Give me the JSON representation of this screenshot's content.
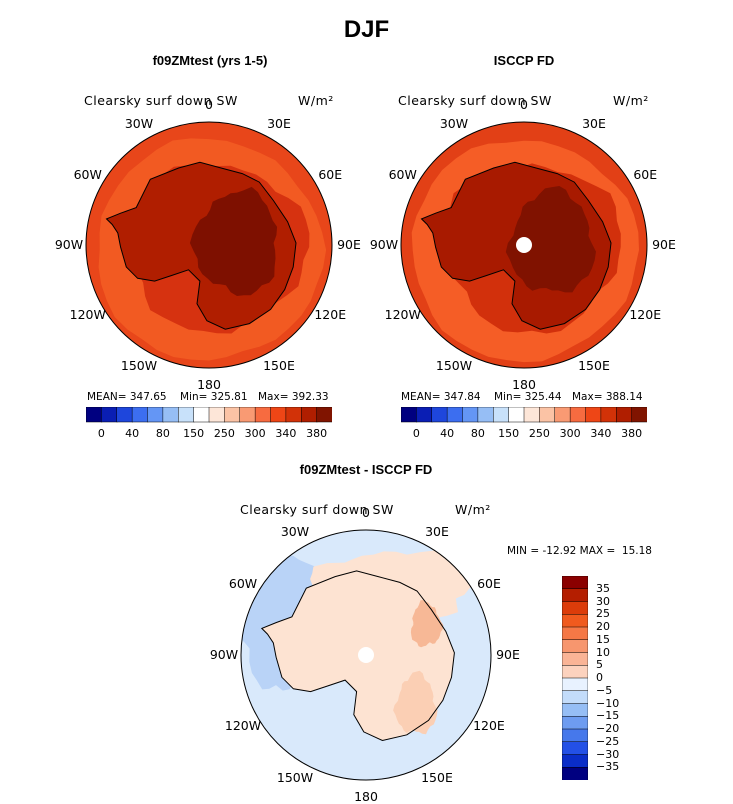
{
  "page_title": "DJF",
  "chart_data": [
    {
      "type": "polar-contour-map",
      "title": "f09ZMtest (yrs 1-5)",
      "variable": "Clearsky surf down SW",
      "units": "W/m²",
      "lon_labels": [
        "0",
        "30E",
        "60E",
        "90E",
        "120E",
        "150E",
        "180",
        "150W",
        "120W",
        "90W",
        "60W",
        "30W"
      ],
      "stats": {
        "mean_label": "MEAN=",
        "mean": "347.65",
        "min_label": "Min=",
        "min": "325.81",
        "max_label": "Max=",
        "max": "392.33"
      },
      "colorbar": {
        "colors": [
          "#000080",
          "#0a1eb4",
          "#1e46dc",
          "#3c6ef0",
          "#6496f5",
          "#96bef5",
          "#c8e1fa",
          "#ffffff",
          "#fde6d8",
          "#fbc3a5",
          "#f99a73",
          "#f76b40",
          "#ee4616",
          "#d23208",
          "#b01e00",
          "#801400"
        ],
        "tick_labels": [
          "0",
          "40",
          "80",
          "150",
          "250",
          "300",
          "340",
          "380"
        ]
      }
    },
    {
      "type": "polar-contour-map",
      "title": "ISCCP FD",
      "variable": "Clearsky surf down SW",
      "units": "W/m²",
      "lon_labels": [
        "0",
        "30E",
        "60E",
        "90E",
        "120E",
        "150E",
        "180",
        "150W",
        "120W",
        "90W",
        "60W",
        "30W"
      ],
      "stats": {
        "mean_label": "MEAN=",
        "mean": "347.84",
        "min_label": "Min=",
        "min": "325.44",
        "max_label": "Max=",
        "max": "388.14"
      },
      "colorbar": {
        "colors": [
          "#000080",
          "#0a1eb4",
          "#1e46dc",
          "#3c6ef0",
          "#6496f5",
          "#96bef5",
          "#c8e1fa",
          "#ffffff",
          "#fde6d8",
          "#fbc3a5",
          "#f99a73",
          "#f76b40",
          "#ee4616",
          "#d23208",
          "#b01e00",
          "#801400"
        ],
        "tick_labels": [
          "0",
          "40",
          "80",
          "150",
          "250",
          "300",
          "340",
          "380"
        ]
      }
    },
    {
      "type": "polar-contour-map",
      "title": "f09ZMtest - ISCCP FD",
      "variable": "Clearsky surf down SW",
      "units": "W/m²",
      "lon_labels": [
        "0",
        "30E",
        "60E",
        "90E",
        "120E",
        "150E",
        "180",
        "150W",
        "120W",
        "90W",
        "60W",
        "30W"
      ],
      "minmax_text": "MIN = -12.92 MAX =  15.18",
      "colorbar": {
        "colors": [
          "#8b0000",
          "#b41e00",
          "#dc3c0a",
          "#f05a1e",
          "#f57846",
          "#f7966e",
          "#fab496",
          "#fcd2be",
          "#e8f2ff",
          "#c3dcfa",
          "#96bef5",
          "#6e9cf0",
          "#4678eb",
          "#2350e6",
          "#0a2dc8",
          "#000080"
        ],
        "tick_labels": [
          "35",
          "30",
          "25",
          "20",
          "15",
          "10",
          "5",
          "0",
          "−5",
          "−10",
          "−15",
          "−20",
          "−25",
          "−30",
          "−35"
        ]
      }
    }
  ]
}
